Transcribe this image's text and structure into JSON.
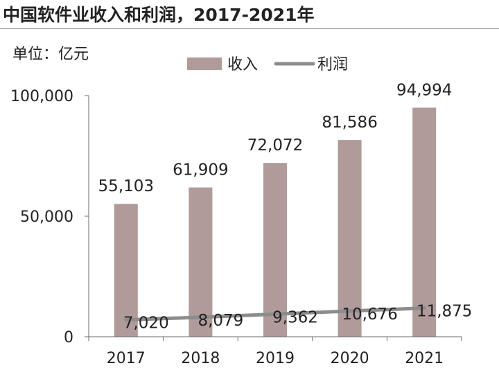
{
  "title": "中国软件业收入和利润，2017-2021年",
  "unit_label": "单位：亿元",
  "legend": {
    "revenue": "收入",
    "profit": "利润"
  },
  "colors": {
    "bar": "#b09a9a",
    "line": "#8c8c8c",
    "axis": "#6b6b6b",
    "text": "#222222"
  },
  "chart_data": {
    "type": "bar",
    "categories": [
      "2017",
      "2018",
      "2019",
      "2020",
      "2021"
    ],
    "series": [
      {
        "name": "收入",
        "type": "bar",
        "values": [
          55103,
          61909,
          72072,
          81586,
          94994
        ],
        "labels": [
          "55,103",
          "61,909",
          "72,072",
          "81,586",
          "94,994"
        ]
      },
      {
        "name": "利润",
        "type": "line",
        "values": [
          7020,
          8079,
          9362,
          10676,
          11875
        ],
        "labels": [
          "7,020",
          "8,079",
          "9,362",
          "10,676",
          "11,875"
        ]
      }
    ],
    "ylim": [
      0,
      100000
    ],
    "yticks": [
      0,
      50000,
      100000
    ],
    "ytick_labels": [
      "0",
      "50,000",
      "100,000"
    ],
    "grid": false,
    "legend_position": "top"
  }
}
